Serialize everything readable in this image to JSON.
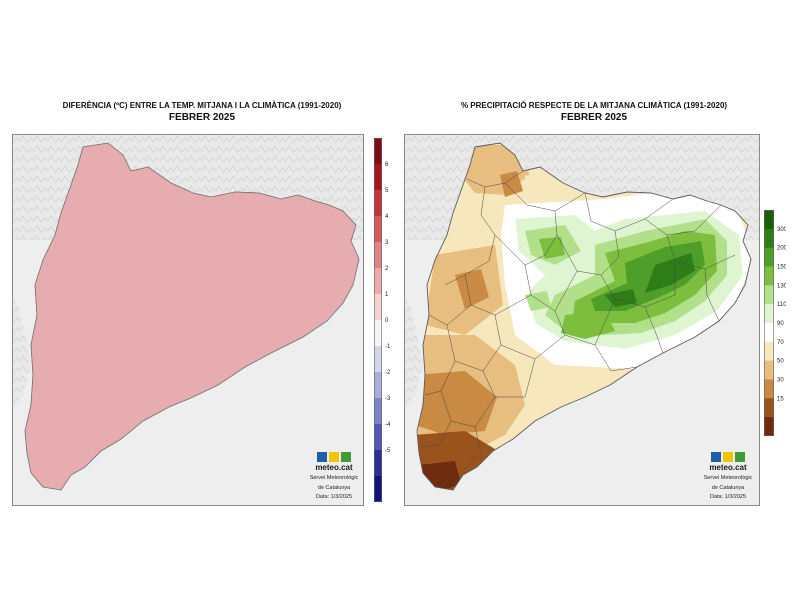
{
  "brand": {
    "logo_text": "meteo.cat",
    "org_line1": "Servei Meteorològic",
    "org_line2": "de Catalunya",
    "date": "Data: 1/3/2025",
    "logo_colors": [
      "#1d5fa8",
      "#f2c500",
      "#3f9a3a"
    ]
  },
  "panels": [
    {
      "title": "DIFERÈNCIA (ºC) ENTRE LA TEMP. MITJANA I LA CLIMÀTICA (1991-2020)",
      "subtitle": "FEBRER 2025"
    },
    {
      "title": "% PRECIPITACIÓ RESPECTE DE LA MITJANA CLIMÀTICA (1991-2020)",
      "subtitle": "FEBRER 2025"
    }
  ],
  "temp_scale": {
    "labels": [
      "6",
      "5",
      "4",
      "3",
      "2",
      "1",
      "0",
      "-1",
      "-2",
      "-3",
      "-4",
      "-5"
    ],
    "colors": [
      "#7d0d14",
      "#a3171d",
      "#c2353a",
      "#d45c60",
      "#e08487",
      "#ebaaac",
      "#f4d3d4",
      "#f5f5f5",
      "#d2d5ec",
      "#a8aedb",
      "#7e86c8",
      "#5159b2",
      "#2a2f96",
      "#0e1378"
    ]
  },
  "prec_scale": {
    "labels": [
      "300",
      "200",
      "150",
      "130",
      "110",
      "90",
      "70",
      "50",
      "30",
      "15"
    ],
    "colors": [
      "#1b5e0a",
      "#2f7d16",
      "#4f9e2a",
      "#7dbe3e",
      "#b2e08a",
      "#dff5d2",
      "#ffffff",
      "#f6e7bd",
      "#e7bd80",
      "#c98a44",
      "#9b531e",
      "#6e2b0d"
    ]
  },
  "map_colors": {
    "background": "#eeeeee",
    "relief": "#d9d9d9",
    "temp_base": "#e7acaf",
    "temp_light": "#f2cfd0",
    "temp_dark": "#d17a80",
    "boundary": "#4a4a4a"
  }
}
